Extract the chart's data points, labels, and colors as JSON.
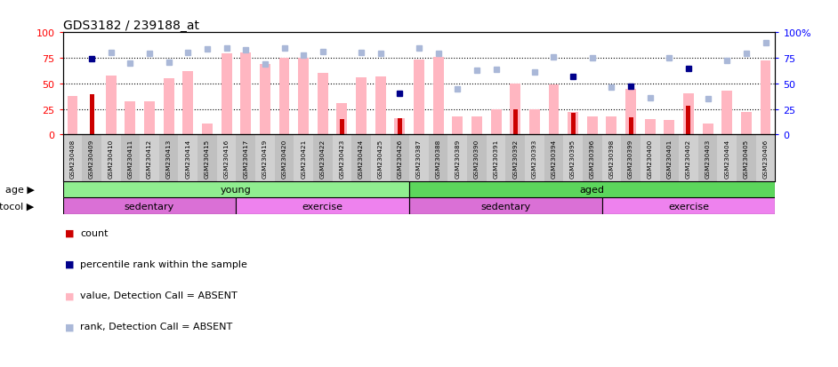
{
  "title": "GDS3182 / 239188_at",
  "samples": [
    "GSM230408",
    "GSM230409",
    "GSM230410",
    "GSM230411",
    "GSM230412",
    "GSM230413",
    "GSM230414",
    "GSM230415",
    "GSM230416",
    "GSM230417",
    "GSM230419",
    "GSM230420",
    "GSM230421",
    "GSM230422",
    "GSM230423",
    "GSM230424",
    "GSM230425",
    "GSM230426",
    "GSM230387",
    "GSM230388",
    "GSM230389",
    "GSM230390",
    "GSM230391",
    "GSM230392",
    "GSM230393",
    "GSM230394",
    "GSM230395",
    "GSM230396",
    "GSM230398",
    "GSM230399",
    "GSM230400",
    "GSM230401",
    "GSM230402",
    "GSM230403",
    "GSM230404",
    "GSM230405",
    "GSM230406"
  ],
  "pink_bars": [
    38,
    0,
    58,
    32,
    32,
    55,
    62,
    11,
    79,
    80,
    69,
    75,
    75,
    60,
    31,
    56,
    57,
    16,
    73,
    76,
    18,
    18,
    25,
    50,
    25,
    49,
    22,
    18,
    18,
    45,
    15,
    14,
    40,
    11,
    43,
    22,
    72
  ],
  "red_bars": [
    0,
    39,
    0,
    0,
    0,
    0,
    0,
    0,
    0,
    0,
    0,
    0,
    0,
    0,
    15,
    0,
    0,
    16,
    0,
    0,
    0,
    0,
    0,
    25,
    0,
    0,
    21,
    0,
    0,
    17,
    0,
    0,
    28,
    0,
    0,
    0,
    0
  ],
  "blue_squares": [
    null,
    74,
    null,
    null,
    null,
    null,
    null,
    null,
    null,
    null,
    null,
    null,
    null,
    null,
    null,
    null,
    null,
    40,
    null,
    null,
    null,
    null,
    null,
    null,
    null,
    null,
    57,
    null,
    null,
    47,
    null,
    null,
    65,
    null,
    null,
    null,
    null
  ],
  "light_blue_squares": [
    null,
    null,
    80,
    70,
    79,
    71,
    80,
    84,
    85,
    83,
    69,
    85,
    78,
    81,
    null,
    80,
    79,
    null,
    85,
    79,
    45,
    63,
    64,
    null,
    61,
    76,
    null,
    75,
    46,
    null,
    36,
    75,
    null,
    35,
    72,
    79,
    90
  ],
  "age_groups": [
    {
      "label": "young",
      "start": 0,
      "end": 18,
      "color": "#90ee90"
    },
    {
      "label": "aged",
      "start": 18,
      "end": 37,
      "color": "#5cd65c"
    }
  ],
  "protocol_groups": [
    {
      "label": "sedentary",
      "start": 0,
      "end": 9,
      "color": "#da70d6"
    },
    {
      "label": "exercise",
      "start": 9,
      "end": 18,
      "color": "#ee82ee"
    },
    {
      "label": "sedentary",
      "start": 18,
      "end": 28,
      "color": "#da70d6"
    },
    {
      "label": "exercise",
      "start": 28,
      "end": 37,
      "color": "#ee82ee"
    }
  ],
  "yticks": [
    0,
    25,
    50,
    75,
    100
  ],
  "pink_bar_color": "#ffb6c1",
  "red_bar_color": "#cc0000",
  "blue_sq_color": "#00008b",
  "light_blue_sq_color": "#aab8d8",
  "legend": [
    {
      "color": "#cc0000",
      "label": "count"
    },
    {
      "color": "#00008b",
      "label": "percentile rank within the sample"
    },
    {
      "color": "#ffb6c1",
      "label": "value, Detection Call = ABSENT"
    },
    {
      "color": "#aab8d8",
      "label": "rank, Detection Call = ABSENT"
    }
  ]
}
